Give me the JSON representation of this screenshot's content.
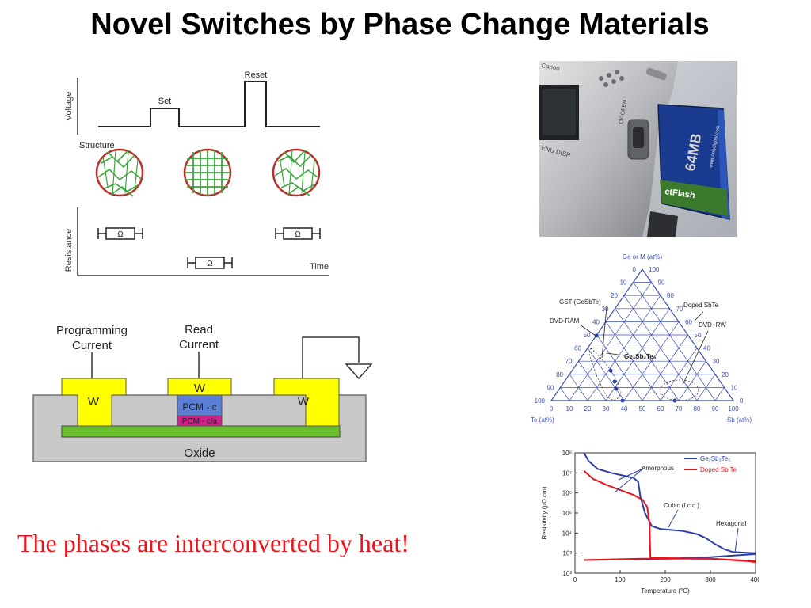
{
  "slide": {
    "title": "Novel Switches by Phase Change Materials",
    "caption": "The phases are interconverted by heat!",
    "caption_color": "#e8141b"
  },
  "waveform": {
    "voltage_label": "Voltage",
    "set_label": "Set",
    "reset_label": "Reset",
    "structure_label": "Structure",
    "resistance_label": "Resistance",
    "time_label": "Time",
    "ohm_symbol": "Ω"
  },
  "device": {
    "programming_current": [
      "Programming",
      "Current"
    ],
    "read_current": [
      "Read",
      "Current"
    ],
    "electrode_label": "W",
    "pcm_c": "PCM - c",
    "pcm_ca": "PCM - c/a",
    "oxide": "Oxide",
    "colors": {
      "electrode": "#ffff00",
      "oxide": "#c8c8c8",
      "heater": "#6abf2f",
      "pcm_c": "#5b7fd6",
      "pcm_ca": "#d0208a"
    }
  },
  "photo": {
    "card_brand": "64MB",
    "card_text": "ctFlash",
    "card_url": "www.onlydigital.com",
    "cf_open": "CF OPEN",
    "menu_label": "ENU  DISP",
    "brand_fragment": "Canon"
  },
  "ternary": {
    "top_label": "Ge or M (at%)",
    "left_label": "Te (at%)",
    "right_label": "Sb (at%)",
    "ticks": [
      "0",
      "10",
      "20",
      "30",
      "40",
      "50",
      "60",
      "70",
      "80",
      "90",
      "100"
    ],
    "annotations": {
      "gst": "GST (GeSbTe)",
      "dvd_ram": "DVD-RAM",
      "doped_sbte": "Doped SbTe",
      "dvd_rw": "DVD+RW",
      "compound": "Ge₂Sb₂Te₅"
    }
  },
  "chart_data": {
    "type": "line",
    "title": "",
    "xlabel": "Temperature (°C)",
    "ylabel": "Resistivity (μΩ cm)",
    "y_scale": "log",
    "xlim": [
      0,
      400
    ],
    "ylim_log10": [
      2,
      8
    ],
    "x_ticks": [
      "0",
      "100",
      "200",
      "300",
      "400"
    ],
    "y_ticks": [
      "10⁸",
      "10⁷",
      "10⁶",
      "10⁵",
      "10⁴",
      "10³",
      "10²"
    ],
    "annotations": [
      "Amorphous",
      "Cubic (f.c.c.)",
      "Hexagonal"
    ],
    "series": [
      {
        "name": "Ge₂Sb₂Te₅",
        "color": "#2b3fa3",
        "heating": [
          [
            20,
            8.0
          ],
          [
            30,
            7.6
          ],
          [
            50,
            7.2
          ],
          [
            80,
            7.0
          ],
          [
            110,
            6.85
          ],
          [
            130,
            6.75
          ],
          [
            140,
            6.55
          ],
          [
            145,
            5.8
          ],
          [
            155,
            5.0
          ],
          [
            170,
            4.35
          ],
          [
            190,
            4.2
          ],
          [
            240,
            4.1
          ],
          [
            270,
            3.95
          ],
          [
            290,
            3.75
          ],
          [
            310,
            3.45
          ],
          [
            330,
            3.2
          ],
          [
            350,
            3.05
          ],
          [
            400,
            3.0
          ]
        ],
        "cooling": [
          [
            20,
            2.65
          ],
          [
            100,
            2.68
          ],
          [
            200,
            2.72
          ],
          [
            300,
            2.8
          ],
          [
            400,
            2.95
          ]
        ]
      },
      {
        "name": "Doped Sb Te",
        "color": "#e8141b",
        "heating": [
          [
            20,
            7.1
          ],
          [
            40,
            6.7
          ],
          [
            70,
            6.4
          ],
          [
            100,
            6.15
          ],
          [
            130,
            5.9
          ],
          [
            150,
            5.65
          ],
          [
            160,
            5.3
          ],
          [
            165,
            4.5
          ],
          [
            167,
            2.75
          ],
          [
            200,
            2.75
          ],
          [
            300,
            2.72
          ],
          [
            380,
            2.6
          ],
          [
            400,
            2.55
          ]
        ],
        "cooling": [
          [
            20,
            2.65
          ],
          [
            150,
            2.72
          ],
          [
            300,
            2.72
          ],
          [
            400,
            2.6
          ]
        ]
      }
    ]
  }
}
